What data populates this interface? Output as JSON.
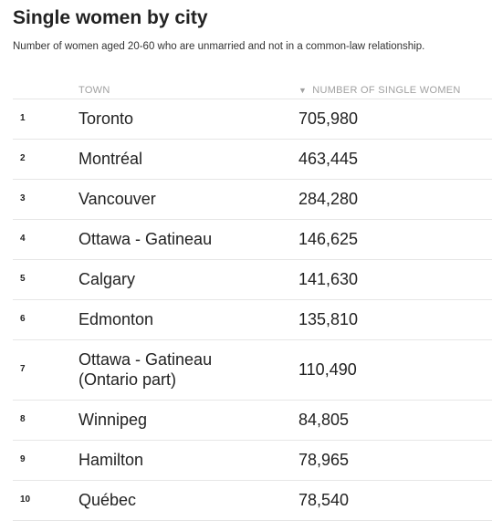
{
  "title": "Single women by city",
  "subtitle": "Number of women aged 20-60 who are unmarried and not in a common-law relationship.",
  "columns": {
    "town": "TOWN",
    "number": "NUMBER OF SINGLE WOMEN",
    "sort_icon": "▼"
  },
  "rows": [
    {
      "rank": "1",
      "town": "Toronto",
      "town2": "",
      "value": "705,980"
    },
    {
      "rank": "2",
      "town": "Montréal",
      "town2": "",
      "value": "463,445"
    },
    {
      "rank": "3",
      "town": "Vancouver",
      "town2": "",
      "value": "284,280"
    },
    {
      "rank": "4",
      "town": "Ottawa - Gatineau",
      "town2": "",
      "value": "146,625"
    },
    {
      "rank": "5",
      "town": "Calgary",
      "town2": "",
      "value": "141,630"
    },
    {
      "rank": "6",
      "town": "Edmonton",
      "town2": "",
      "value": "135,810"
    },
    {
      "rank": "7",
      "town": "Ottawa - Gatineau",
      "town2": "(Ontario part)",
      "value": "110,490"
    },
    {
      "rank": "8",
      "town": "Winnipeg",
      "town2": "",
      "value": "84,805"
    },
    {
      "rank": "9",
      "town": "Hamilton",
      "town2": "",
      "value": "78,965"
    },
    {
      "rank": "10",
      "town": "Québec",
      "town2": "",
      "value": "78,540"
    }
  ]
}
